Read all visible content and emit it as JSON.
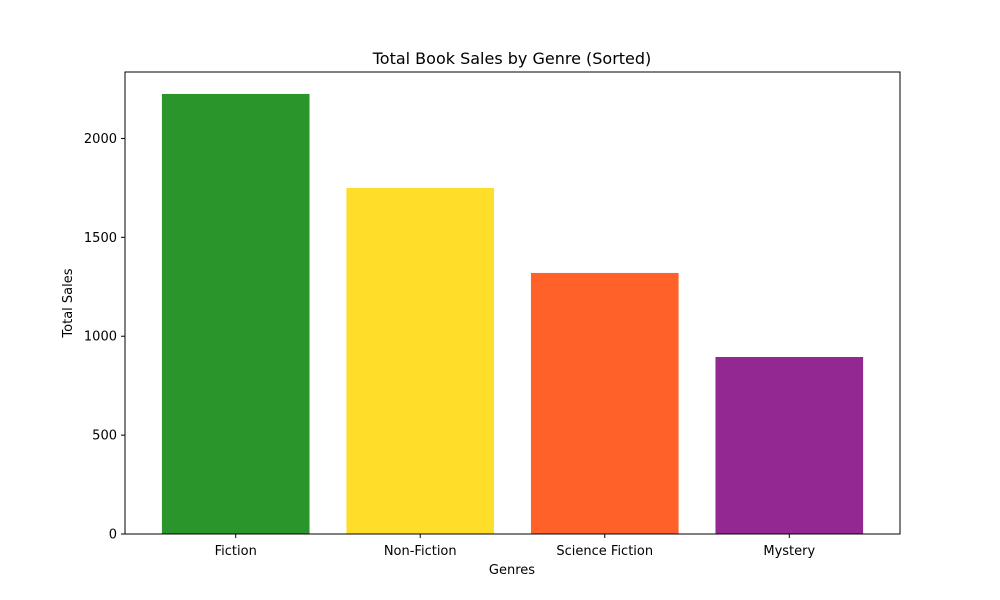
{
  "chart_data": {
    "type": "bar",
    "title": "Total Book Sales by Genre (Sorted)",
    "xlabel": "Genres",
    "ylabel": "Total Sales",
    "categories": [
      "Fiction",
      "Non-Fiction",
      "Science Fiction",
      "Mystery"
    ],
    "values": [
      2225,
      1750,
      1320,
      895
    ],
    "colors": [
      "#2a952a",
      "#fede28",
      "#ff6128",
      "#932893"
    ],
    "ylim": [
      0,
      2336
    ],
    "yticks": [
      0,
      500,
      1000,
      1500,
      2000
    ],
    "grid": false,
    "legend": "none"
  }
}
